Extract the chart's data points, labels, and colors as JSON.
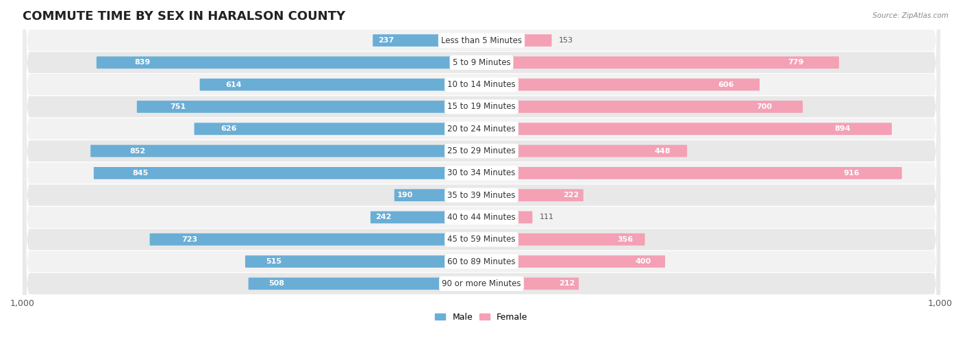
{
  "title": "COMMUTE TIME BY SEX IN HARALSON COUNTY",
  "source": "Source: ZipAtlas.com",
  "categories": [
    "Less than 5 Minutes",
    "5 to 9 Minutes",
    "10 to 14 Minutes",
    "15 to 19 Minutes",
    "20 to 24 Minutes",
    "25 to 29 Minutes",
    "30 to 34 Minutes",
    "35 to 39 Minutes",
    "40 to 44 Minutes",
    "45 to 59 Minutes",
    "60 to 89 Minutes",
    "90 or more Minutes"
  ],
  "male_values": [
    237,
    839,
    614,
    751,
    626,
    852,
    845,
    190,
    242,
    723,
    515,
    508
  ],
  "female_values": [
    153,
    779,
    606,
    700,
    894,
    448,
    916,
    222,
    111,
    356,
    400,
    212
  ],
  "male_color": "#6aaed6",
  "female_color": "#f4a0b5",
  "male_label": "Male",
  "female_label": "Female",
  "axis_max": 1000,
  "bg_color": "#ffffff",
  "row_colors": [
    "#f2f2f2",
    "#e8e8e8"
  ],
  "title_fontsize": 13,
  "label_fontsize": 8.5,
  "value_fontsize": 8,
  "bar_height": 0.55
}
